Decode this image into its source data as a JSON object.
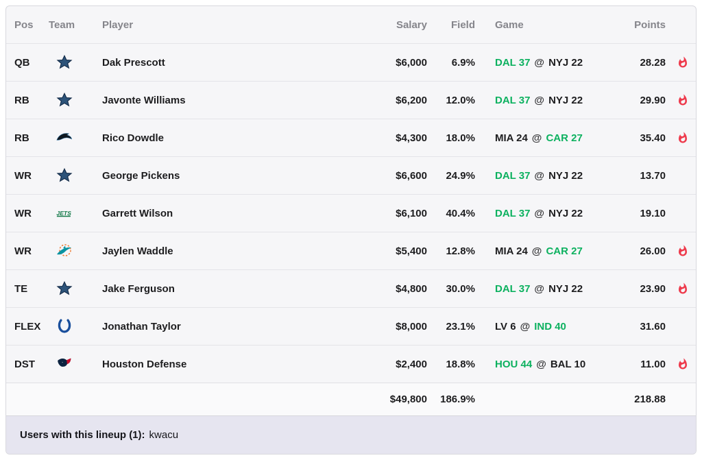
{
  "table": {
    "columns": {
      "pos": "Pos",
      "team": "Team",
      "player": "Player",
      "salary": "Salary",
      "field": "Field",
      "game": "Game",
      "points": "Points"
    },
    "rows": [
      {
        "pos": "QB",
        "team_icon": "cowboys-logo",
        "team": "Dallas Cowboys",
        "player": "Dak Prescott",
        "salary": "$6,000",
        "field": "6.9%",
        "game": {
          "away": "DAL 37",
          "home": "NYJ 22",
          "winner": "away"
        },
        "points": "28.28",
        "hot": true
      },
      {
        "pos": "RB",
        "team_icon": "cowboys-logo",
        "team": "Dallas Cowboys",
        "player": "Javonte Williams",
        "salary": "$6,200",
        "field": "12.0%",
        "game": {
          "away": "DAL 37",
          "home": "NYJ 22",
          "winner": "away"
        },
        "points": "29.90",
        "hot": true
      },
      {
        "pos": "RB",
        "team_icon": "panthers-logo",
        "team": "Carolina Panthers",
        "player": "Rico Dowdle",
        "salary": "$4,300",
        "field": "18.0%",
        "game": {
          "away": "MIA 24",
          "home": "CAR 27",
          "winner": "home"
        },
        "points": "35.40",
        "hot": true
      },
      {
        "pos": "WR",
        "team_icon": "cowboys-logo",
        "team": "Dallas Cowboys",
        "player": "George Pickens",
        "salary": "$6,600",
        "field": "24.9%",
        "game": {
          "away": "DAL 37",
          "home": "NYJ 22",
          "winner": "away"
        },
        "points": "13.70",
        "hot": false
      },
      {
        "pos": "WR",
        "team_icon": "jets-logo",
        "team": "New York Jets",
        "player": "Garrett Wilson",
        "salary": "$6,100",
        "field": "40.4%",
        "game": {
          "away": "DAL 37",
          "home": "NYJ 22",
          "winner": "away"
        },
        "points": "19.10",
        "hot": false
      },
      {
        "pos": "WR",
        "team_icon": "dolphins-logo",
        "team": "Miami Dolphins",
        "player": "Jaylen Waddle",
        "salary": "$5,400",
        "field": "12.8%",
        "game": {
          "away": "MIA 24",
          "home": "CAR 27",
          "winner": "home"
        },
        "points": "26.00",
        "hot": true
      },
      {
        "pos": "TE",
        "team_icon": "cowboys-logo",
        "team": "Dallas Cowboys",
        "player": "Jake Ferguson",
        "salary": "$4,800",
        "field": "30.0%",
        "game": {
          "away": "DAL 37",
          "home": "NYJ 22",
          "winner": "away"
        },
        "points": "23.90",
        "hot": true
      },
      {
        "pos": "FLEX",
        "team_icon": "colts-logo",
        "team": "Indianapolis Colts",
        "player": "Jonathan Taylor",
        "salary": "$8,000",
        "field": "23.1%",
        "game": {
          "away": "LV 6",
          "home": "IND 40",
          "winner": "home"
        },
        "points": "31.60",
        "hot": false
      },
      {
        "pos": "DST",
        "team_icon": "texans-logo",
        "team": "Houston Texans",
        "player": "Houston Defense",
        "salary": "$2,400",
        "field": "18.8%",
        "game": {
          "away": "HOU 44",
          "home": "BAL 10",
          "winner": "away"
        },
        "points": "11.00",
        "hot": true
      }
    ],
    "totals": {
      "salary": "$49,800",
      "field": "186.9%",
      "points": "218.88"
    },
    "game_at_separator": "@"
  },
  "footer": {
    "label": "Users with this lineup (1):",
    "value": "kwacu"
  },
  "colors": {
    "winner_green": "#0cb15f",
    "fire_red": "#ee3a4c",
    "footer_bg": "#e6e5f0",
    "row_bg": "#f6f6f8"
  }
}
